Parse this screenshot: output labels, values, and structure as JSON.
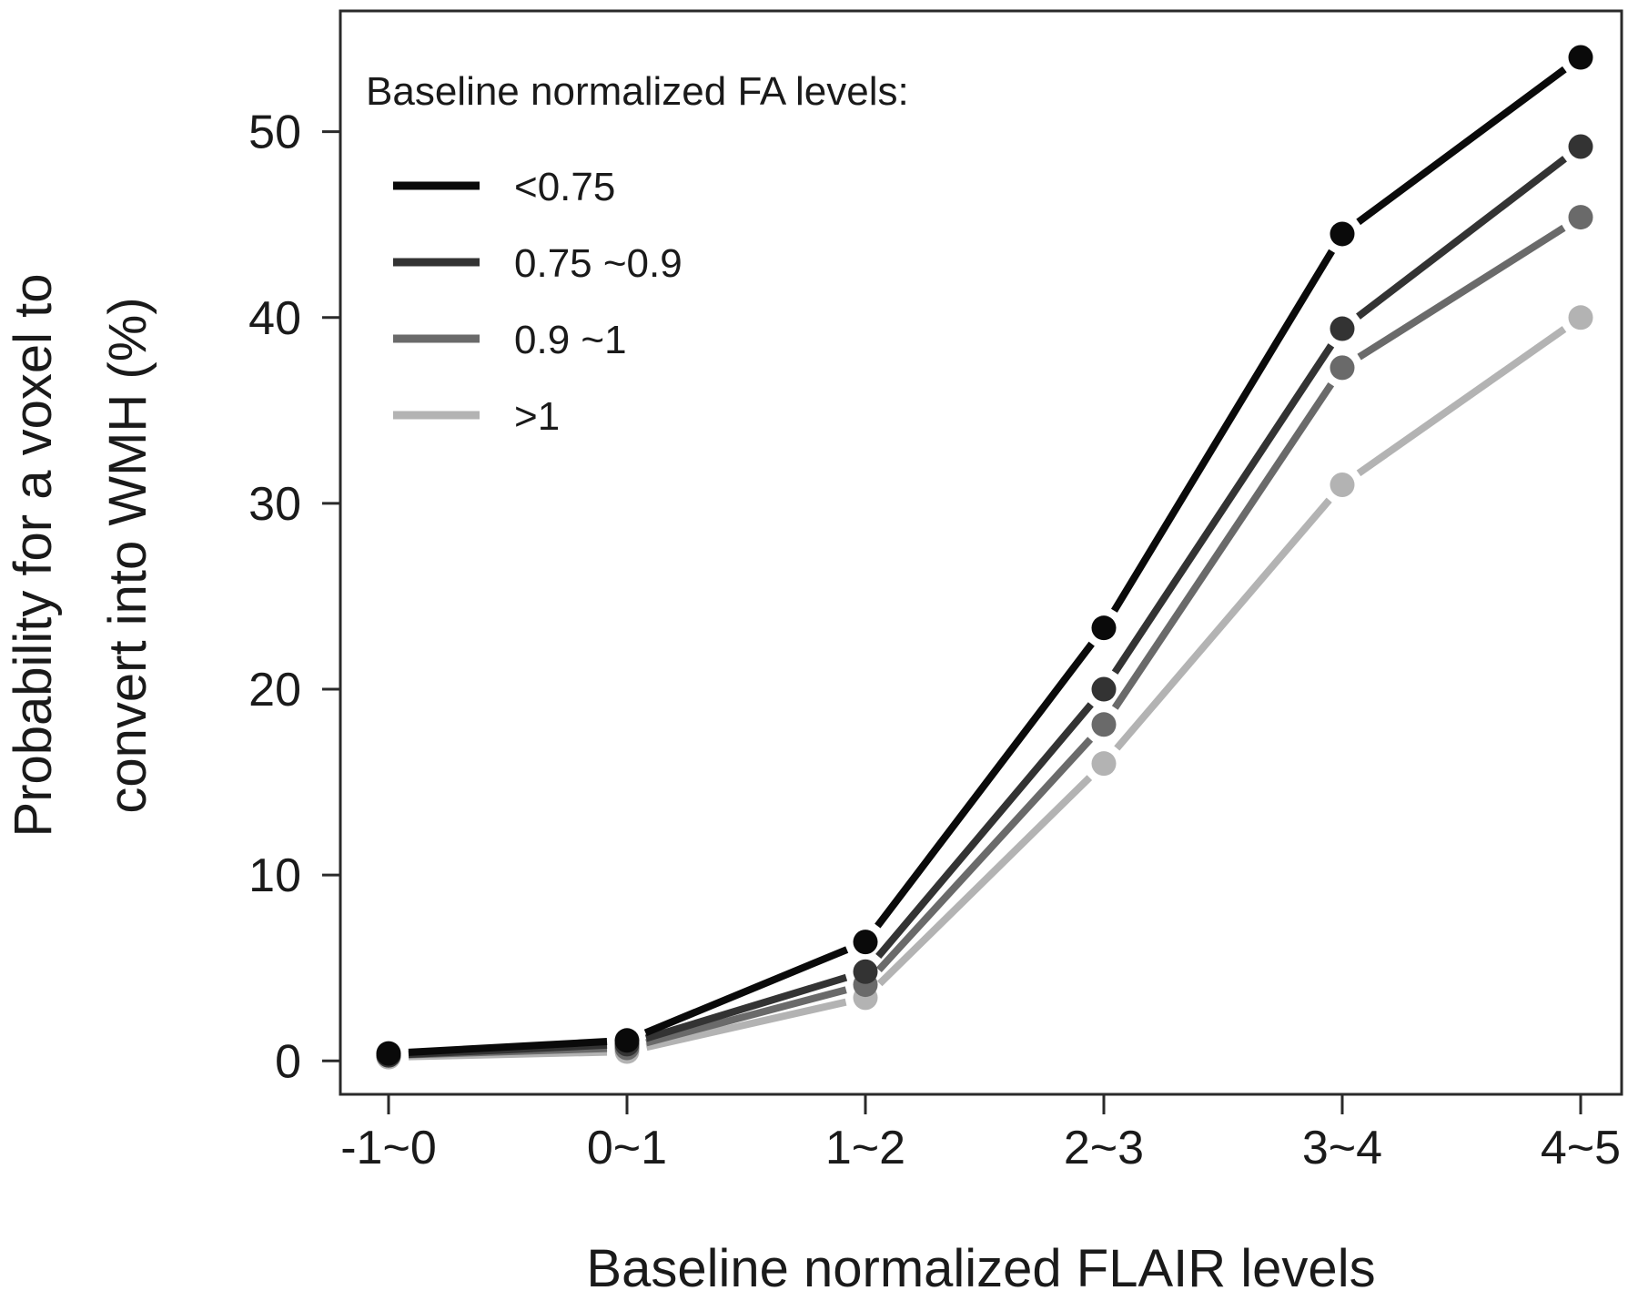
{
  "chart_data": {
    "type": "line",
    "title": "",
    "xlabel": "Baseline normalized FLAIR levels",
    "ylabel_lines": [
      "Probability for a voxel to",
      "convert into WMH (%)"
    ],
    "categories": [
      "-1~0",
      "0~1",
      "1~2",
      "2~3",
      "3~4",
      "4~5"
    ],
    "ylim": [
      -1.8,
      56.5
    ],
    "yticks": [
      0,
      10,
      20,
      30,
      40,
      50
    ],
    "grid": false,
    "legend_title": "Baseline normalized  FA levels:",
    "legend_position": "top-left",
    "series": [
      {
        "name": "<0.75",
        "color": "#0a0a0a",
        "values": [
          0.4,
          1.1,
          6.4,
          23.3,
          44.5,
          54.0
        ]
      },
      {
        "name": "0.75 ~0.9",
        "color": "#333333",
        "values": [
          0.3,
          0.9,
          4.8,
          20.0,
          39.4,
          49.2
        ]
      },
      {
        "name": "0.9 ~1",
        "color": "#6a6a6a",
        "values": [
          0.3,
          0.7,
          4.1,
          18.1,
          37.3,
          45.4
        ]
      },
      {
        "name": ">1",
        "color": "#b3b3b3",
        "values": [
          0.2,
          0.5,
          3.4,
          16.0,
          31.0,
          40.0
        ]
      }
    ]
  }
}
